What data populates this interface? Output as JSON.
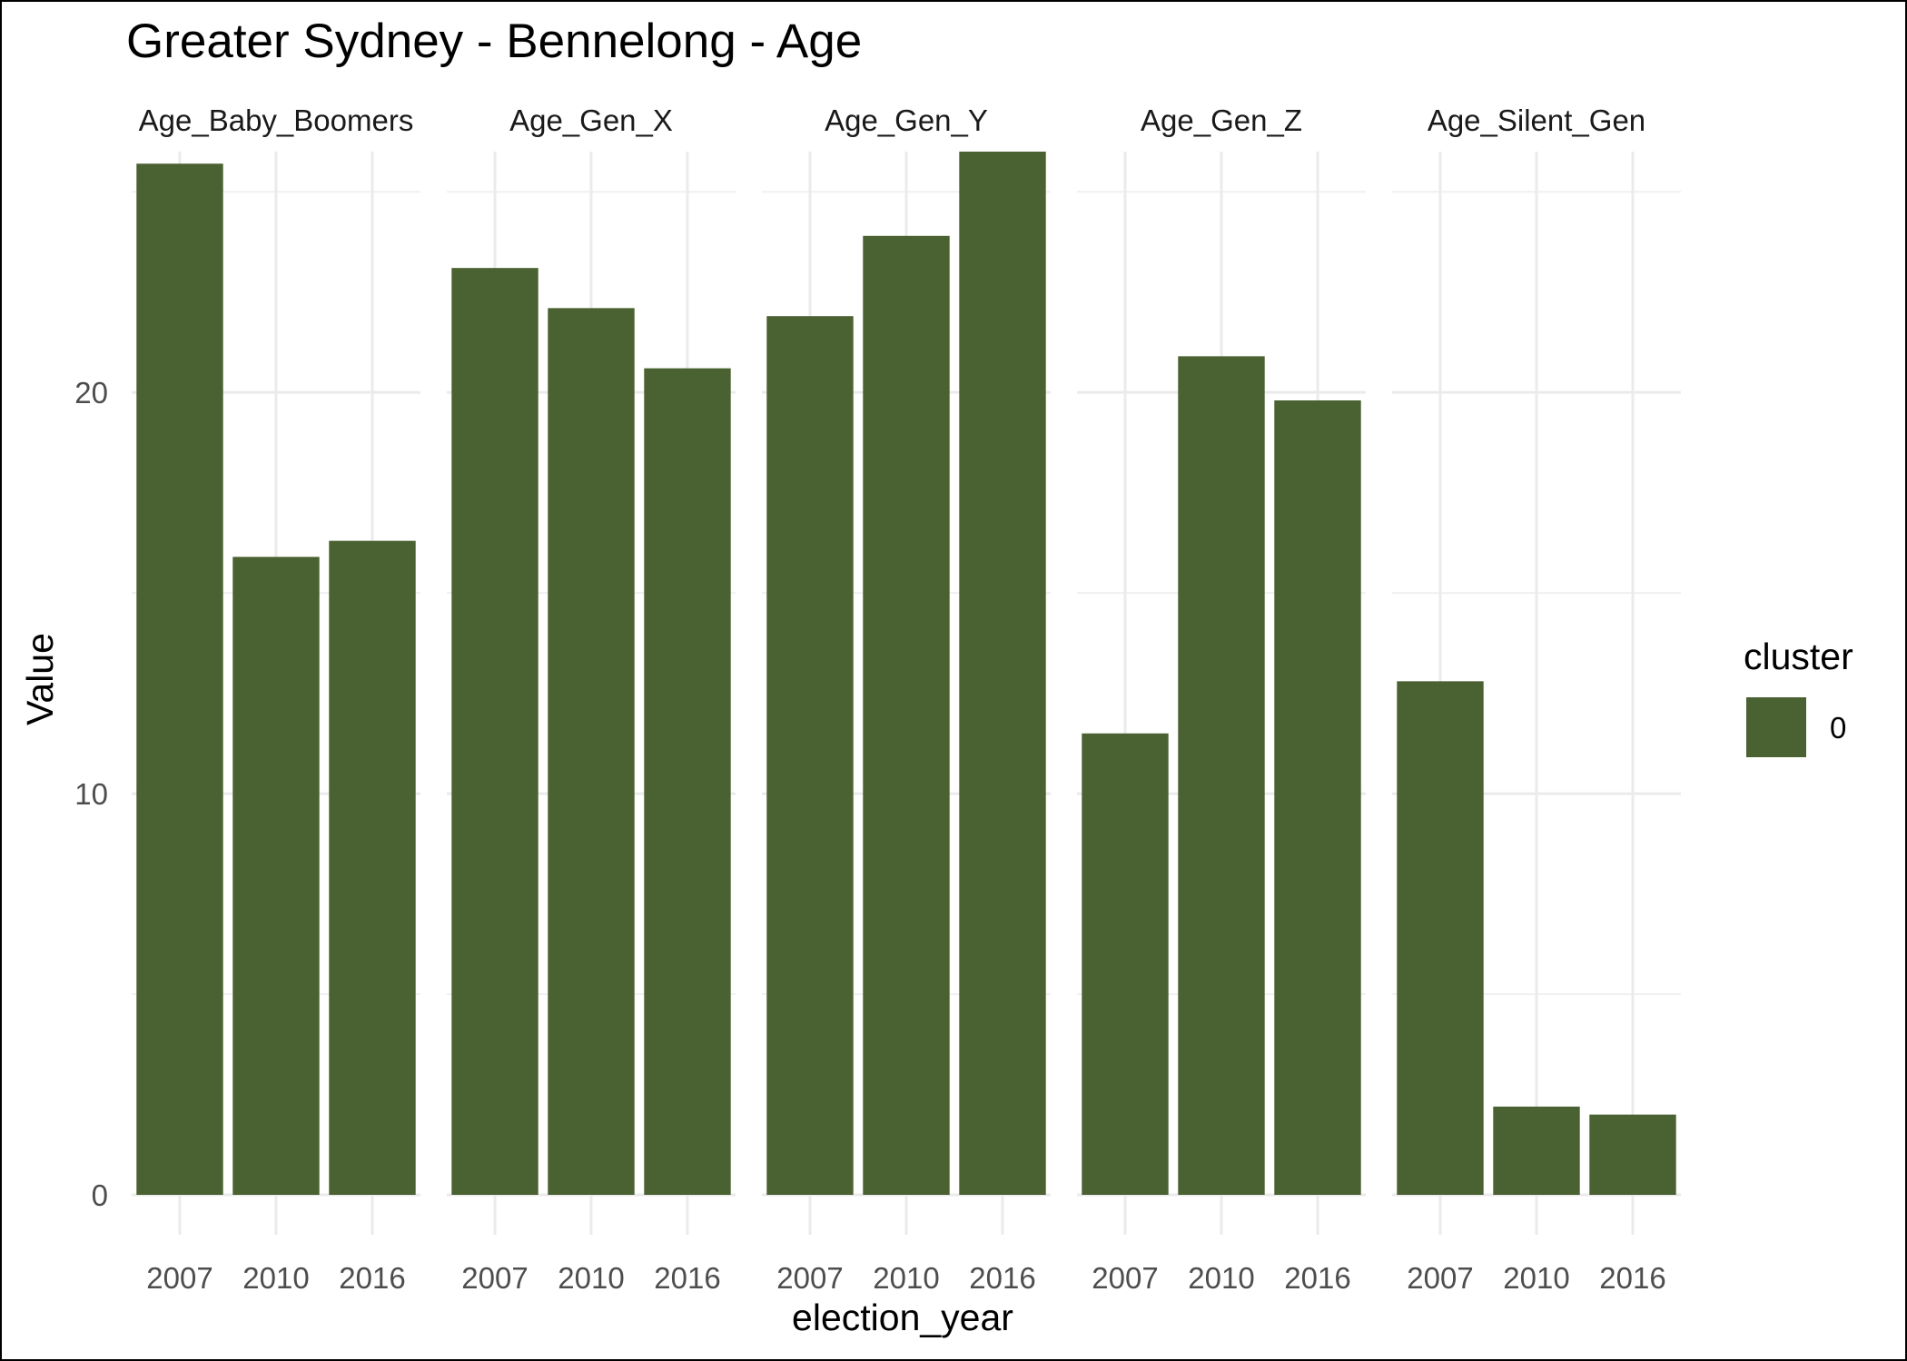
{
  "chart_data": {
    "type": "bar",
    "title": "Greater Sydney - Bennelong - Age",
    "xlabel": "election_year",
    "ylabel": "Value",
    "ylim": [
      0,
      26
    ],
    "y_ticks": [
      0,
      10,
      20
    ],
    "grid": true,
    "bar_color": "#4a6131",
    "categories": [
      "2007",
      "2010",
      "2016"
    ],
    "facets": [
      {
        "name": "Age_Baby_Boomers",
        "values": [
          25.7,
          15.9,
          16.3
        ]
      },
      {
        "name": "Age_Gen_X",
        "values": [
          23.1,
          22.1,
          20.6
        ]
      },
      {
        "name": "Age_Gen_Y",
        "values": [
          21.9,
          23.9,
          26.0
        ]
      },
      {
        "name": "Age_Gen_Z",
        "values": [
          11.5,
          20.9,
          19.8
        ]
      },
      {
        "name": "Age_Silent_Gen",
        "values": [
          12.8,
          2.2,
          2.0
        ]
      }
    ],
    "legend": {
      "title": "cluster",
      "position": "right",
      "entries": [
        {
          "label": "0",
          "color": "#4a6131"
        }
      ]
    }
  }
}
